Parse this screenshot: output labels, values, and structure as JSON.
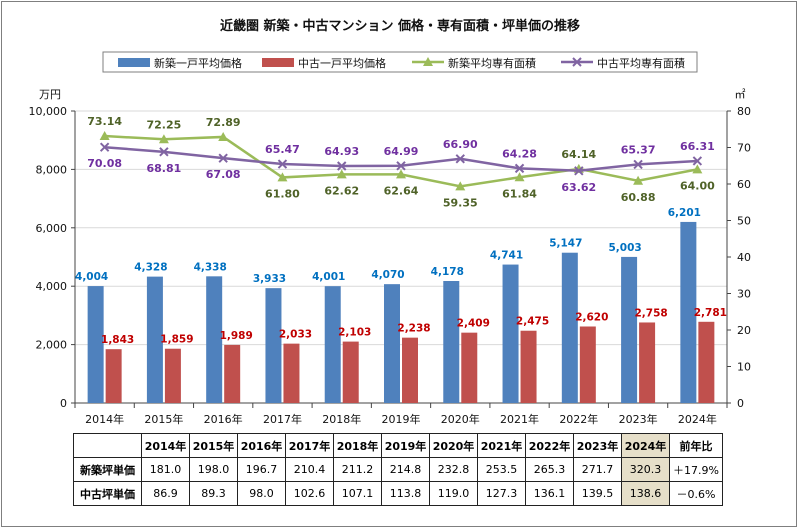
{
  "chart_data": {
    "type": "bar+line",
    "title": "近畿圏 新築・中古マンション 価格・専有面積・坪単価の推移",
    "categories": [
      "2014年",
      "2015年",
      "2016年",
      "2017年",
      "2018年",
      "2019年",
      "2020年",
      "2021年",
      "2022年",
      "2023年",
      "2024年"
    ],
    "y_left": {
      "unit": "万円",
      "min": 0,
      "max": 10000,
      "ticks": [
        "0",
        "2,000",
        "4,000",
        "6,000",
        "8,000",
        "10,000"
      ]
    },
    "y_right": {
      "unit": "㎡",
      "min": 0,
      "max": 80,
      "ticks": [
        "0",
        "10",
        "20",
        "30",
        "40",
        "50",
        "60",
        "70",
        "80"
      ]
    },
    "bar_series": [
      {
        "name": "新築一戸平均価格",
        "color": "#4f81bd",
        "label_color": "#0070c0",
        "values": [
          4004,
          4328,
          4338,
          3933,
          4001,
          4070,
          4178,
          4741,
          5147,
          5003,
          6201
        ],
        "labels": [
          "4,004",
          "4,328",
          "4,338",
          "3,933",
          "4,001",
          "4,070",
          "4,178",
          "4,741",
          "5,147",
          "5,003",
          "6,201"
        ]
      },
      {
        "name": "中古一戸平均価格",
        "color": "#c0504d",
        "label_color": "#c00000",
        "values": [
          1843,
          1859,
          1989,
          2033,
          2103,
          2238,
          2409,
          2475,
          2620,
          2758,
          2781
        ],
        "labels": [
          "1,843",
          "1,859",
          "1,989",
          "2,033",
          "2,103",
          "2,238",
          "2,409",
          "2,475",
          "2,620",
          "2,758",
          "2,781"
        ]
      }
    ],
    "line_series": [
      {
        "name": "新築平均専有面積",
        "color": "#9bbb59",
        "label_color": "#4f6228",
        "marker": "triangle",
        "values": [
          73.14,
          72.25,
          72.89,
          61.8,
          62.62,
          62.64,
          59.35,
          61.84,
          64.14,
          60.88,
          64.0
        ],
        "labels": [
          "73.14",
          "72.25",
          "72.89",
          "61.80",
          "62.62",
          "62.64",
          "59.35",
          "61.84",
          "64.14",
          "60.88",
          "64.00"
        ]
      },
      {
        "name": "中古平均専有面積",
        "color": "#8064a2",
        "label_color": "#7030a0",
        "marker": "x",
        "values": [
          70.08,
          68.81,
          67.08,
          65.47,
          64.93,
          64.99,
          66.9,
          64.28,
          63.62,
          65.37,
          66.31
        ],
        "labels": [
          "70.08",
          "68.81",
          "67.08",
          "65.47",
          "64.93",
          "64.99",
          "66.90",
          "64.28",
          "63.62",
          "65.37",
          "66.31"
        ]
      }
    ]
  },
  "table": {
    "headers": [
      "2014年",
      "2015年",
      "2016年",
      "2017年",
      "2018年",
      "2019年",
      "2020年",
      "2021年",
      "2022年",
      "2023年",
      "2024年",
      "前年比"
    ],
    "rows": [
      {
        "label": "新築坪単価",
        "values": [
          "181.0",
          "198.0",
          "196.7",
          "210.4",
          "211.2",
          "214.8",
          "232.8",
          "253.5",
          "265.3",
          "271.7",
          "320.3",
          "＋17.9%"
        ]
      },
      {
        "label": "中古坪単価",
        "values": [
          "86.9",
          "89.3",
          "98.0",
          "102.6",
          "107.1",
          "113.8",
          "119.0",
          "127.3",
          "136.1",
          "139.5",
          "138.6",
          "－0.6%"
        ]
      }
    ]
  }
}
